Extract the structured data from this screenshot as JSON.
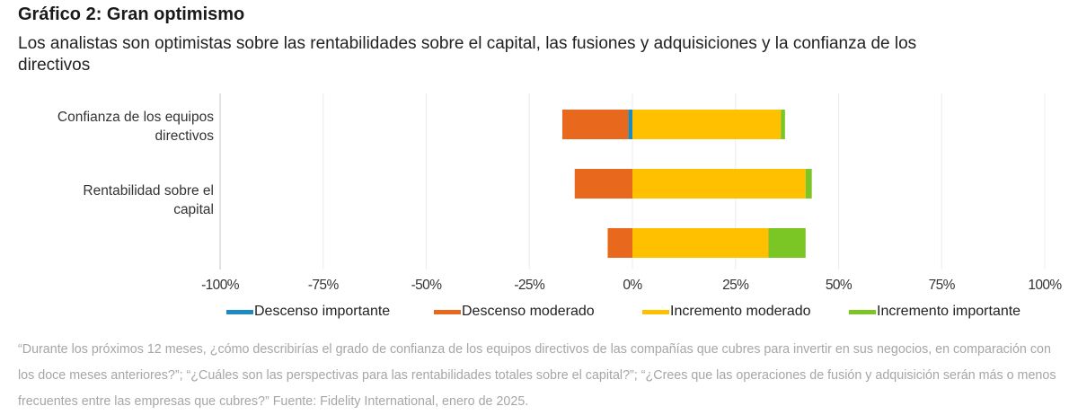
{
  "header": {
    "title": "Gráfico 2: Gran optimismo",
    "subtitle": "Los analistas son optimistas sobre las rentabilidades sobre el capital, las fusiones y adquisiciones y la confianza de los directivos"
  },
  "chart_data": {
    "type": "bar",
    "orientation": "horizontal",
    "stacked": "diverging",
    "title": "Gráfico 2: Gran optimismo",
    "subtitle": "Los analistas son optimistas sobre las rentabilidades sobre el capital, las fusiones y adquisiciones y la confianza de los directivos",
    "categories": [
      "Confianza de los equipos directivos",
      "Rentabilidad sobre el capital",
      ""
    ],
    "category_lines": [
      [
        "Confianza de los equipos",
        "directivos"
      ],
      [
        "Rentabilidad sobre el",
        "capital"
      ],
      []
    ],
    "series": [
      {
        "name": "Descenso importante",
        "color": "#1f8ac0",
        "values": [
          -1,
          0,
          0
        ]
      },
      {
        "name": "Descenso moderado",
        "color": "#e8691d",
        "values": [
          -16,
          -14,
          -6
        ]
      },
      {
        "name": "Incremento moderado",
        "color": "#ffc000",
        "values": [
          36,
          42,
          33
        ]
      },
      {
        "name": "Incremento importante",
        "color": "#7bc524",
        "values": [
          1,
          1.5,
          9
        ]
      }
    ],
    "xlim": [
      -100,
      100
    ],
    "xticks": [
      -100,
      -75,
      -50,
      -25,
      0,
      25,
      50,
      75,
      100
    ],
    "xtick_labels": [
      "-100%",
      "-75%",
      "-50%",
      "-25%",
      "0%",
      "25%",
      "50%",
      "75%",
      "100%"
    ],
    "xlabel": "",
    "ylabel": "",
    "grid": true,
    "legend_position": "bottom"
  },
  "footnote": "“Durante los próximos 12 meses, ¿cómo describirías el grado de confianza de los equipos directivos de las compañías que cubres para invertir en sus negocios, en comparación con los doce meses anteriores?”; “¿Cuáles son las perspectivas para las rentabilidades totales sobre el capital?”; “¿Crees que las operaciones de fusión y adquisición serán más o menos frecuentes entre las empresas que cubres?” Fuente: Fidelity International, enero de 2025."
}
